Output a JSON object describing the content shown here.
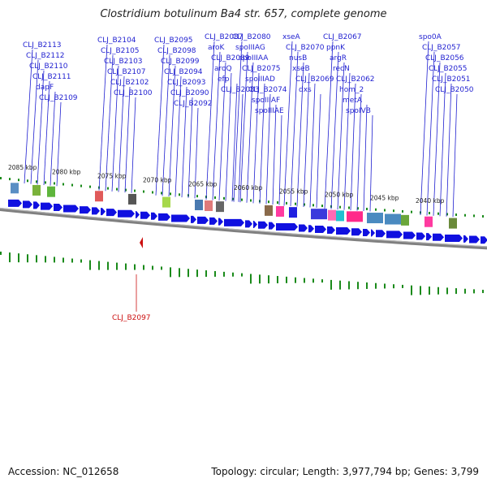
{
  "title": "Clostridium botulinum Ba4 str. 657, complete genome",
  "footer": {
    "accession": "Accession: NC_012658",
    "summary": "Topology: circular; Length: 3,977,794 bp; Genes: 3,799"
  },
  "colors": {
    "gene_label": "#1f1fd0",
    "highlight": "#cc1111",
    "forward_gene": "#1010e0",
    "backbone": "#888888",
    "gc_tick": "#1a8a1a"
  },
  "kbp_marks": [
    "2085 kbp",
    "2080 kbp",
    "2075 kbp",
    "2070 kbp",
    "2065 kbp",
    "2060 kbp",
    "2055 kbp",
    "2050 kbp",
    "2045 kbp",
    "2040 kbp"
  ],
  "gene_labels": [
    "CLJ_B2113",
    "CLJ_B2112",
    "CLJ_B2110",
    "CLJ_B2111",
    "dapF",
    "CLJ_B2109",
    "CLJ_B2104",
    "CLJ_B2105",
    "CLJ_B2103",
    "CLJ_B2107",
    "CLJ_B2102",
    "CLJ_B2100",
    "CLJ_B2095",
    "CLJ_B2098",
    "CLJ_B2099",
    "CLJ_B2094",
    "CLJ_B2093",
    "CLJ_B2090",
    "CLJ_B2092",
    "CLJ_B2087",
    "aroK",
    "CLJ_B2089",
    "aroQ",
    "efp",
    "CLJ_B2083",
    "CLJ_B2080",
    "spoIIIAG",
    "spoIIIAA",
    "CLJ_B2075",
    "spoIIIAD",
    "CLJ_B2074",
    "spoIIIAF",
    "spoIIIAE",
    "xseA",
    "CLJ_B2070",
    "nusB",
    "xseB",
    "CLJ_B2069",
    "dxs",
    "CLJ_B2067",
    "ppnK",
    "argR",
    "recN",
    "CLJ_B2062",
    "hom_2",
    "metA",
    "spoIVB",
    "spo0A",
    "CLJ_B2057",
    "CLJ_B2056",
    "CLJ_B2055",
    "CLJ_B2051",
    "CLJ_B2050"
  ],
  "highlighted_gene": "CLJ_B2097"
}
